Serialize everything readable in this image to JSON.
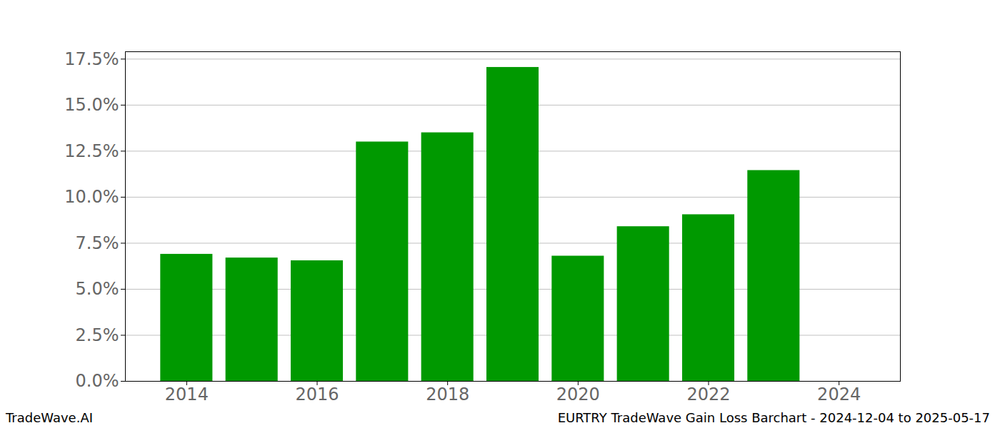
{
  "chart_data": {
    "type": "bar",
    "title": "EURTRY TradeWave Gain Loss Barchart - 2024-12-04 to 2025-05-17",
    "annotations": [
      "TradeWave.AI"
    ],
    "x": [
      2014,
      2015,
      2016,
      2017,
      2018,
      2019,
      2020,
      2021,
      2022,
      2023,
      2024
    ],
    "values": [
      6.9,
      6.7,
      6.55,
      13.0,
      13.5,
      17.05,
      6.8,
      8.4,
      9.05,
      11.45,
      0
    ],
    "color": "#009900",
    "xlim": [
      2013.06,
      2024.94
    ],
    "xticks": [
      2014,
      2016,
      2018,
      2020,
      2022,
      2024
    ],
    "ylim": [
      0,
      17.9
    ],
    "yticks": [
      {
        "value": 0,
        "label": "0.0%"
      },
      {
        "value": 2.5,
        "label": "2.5%"
      },
      {
        "value": 5,
        "label": "5.0%"
      },
      {
        "value": 7.5,
        "label": "7.5%"
      },
      {
        "value": 10,
        "label": "10.0%"
      },
      {
        "value": 12.5,
        "label": "12.5%"
      },
      {
        "value": 15,
        "label": "15.0%"
      },
      {
        "value": 17.5,
        "label": "17.5%"
      }
    ],
    "grid": true
  }
}
